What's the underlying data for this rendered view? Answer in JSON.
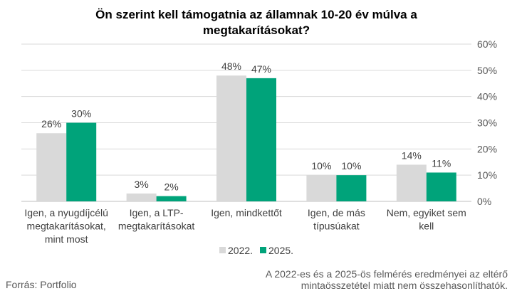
{
  "chart_data": {
    "type": "bar",
    "title": "Ön szerint kell támogatnia az államnak 10-20 év múlva a megtakarításokat?",
    "title_lines": [
      "Ön szerint kell támogatnia az államnak 10-20 év múlva a",
      "megtakarításokat?"
    ],
    "categories": [
      [
        "Igen, a nyugdíjcélú",
        "megtakarításokat,",
        "mint most"
      ],
      [
        "Igen, a LTP-",
        "megtakarításokat"
      ],
      [
        "Igen, mindkettőt"
      ],
      [
        "Igen, de más",
        "típusúakat"
      ],
      [
        "Nem, egyiket sem",
        "kell"
      ]
    ],
    "series": [
      {
        "name": "2022.",
        "color": "#d9d9d9",
        "values": [
          26,
          3,
          48,
          10,
          14
        ],
        "labels": [
          "26%",
          "3%",
          "48%",
          "10%",
          "14%"
        ]
      },
      {
        "name": "2025.",
        "color": "#00a37a",
        "values": [
          30,
          2,
          47,
          10,
          11
        ],
        "labels": [
          "30%",
          "2%",
          "47%",
          "10%",
          "11%"
        ]
      }
    ],
    "ylim": [
      0,
      60
    ],
    "yticks": [
      0,
      10,
      20,
      30,
      40,
      50,
      60
    ],
    "ytick_labels": [
      "0%",
      "10%",
      "20%",
      "30%",
      "40%",
      "50%",
      "60%"
    ],
    "y_axis_side": "right",
    "grid": true,
    "legend_position": "bottom",
    "xlabel": "",
    "ylabel": ""
  },
  "footer": {
    "source": "Forrás: Portfolio",
    "note_lines": [
      "A 2022-es és a 2025-ös felmérés eredményei az eltérő",
      "mintaösszetétel miatt nem összehasonlíthatók."
    ]
  }
}
